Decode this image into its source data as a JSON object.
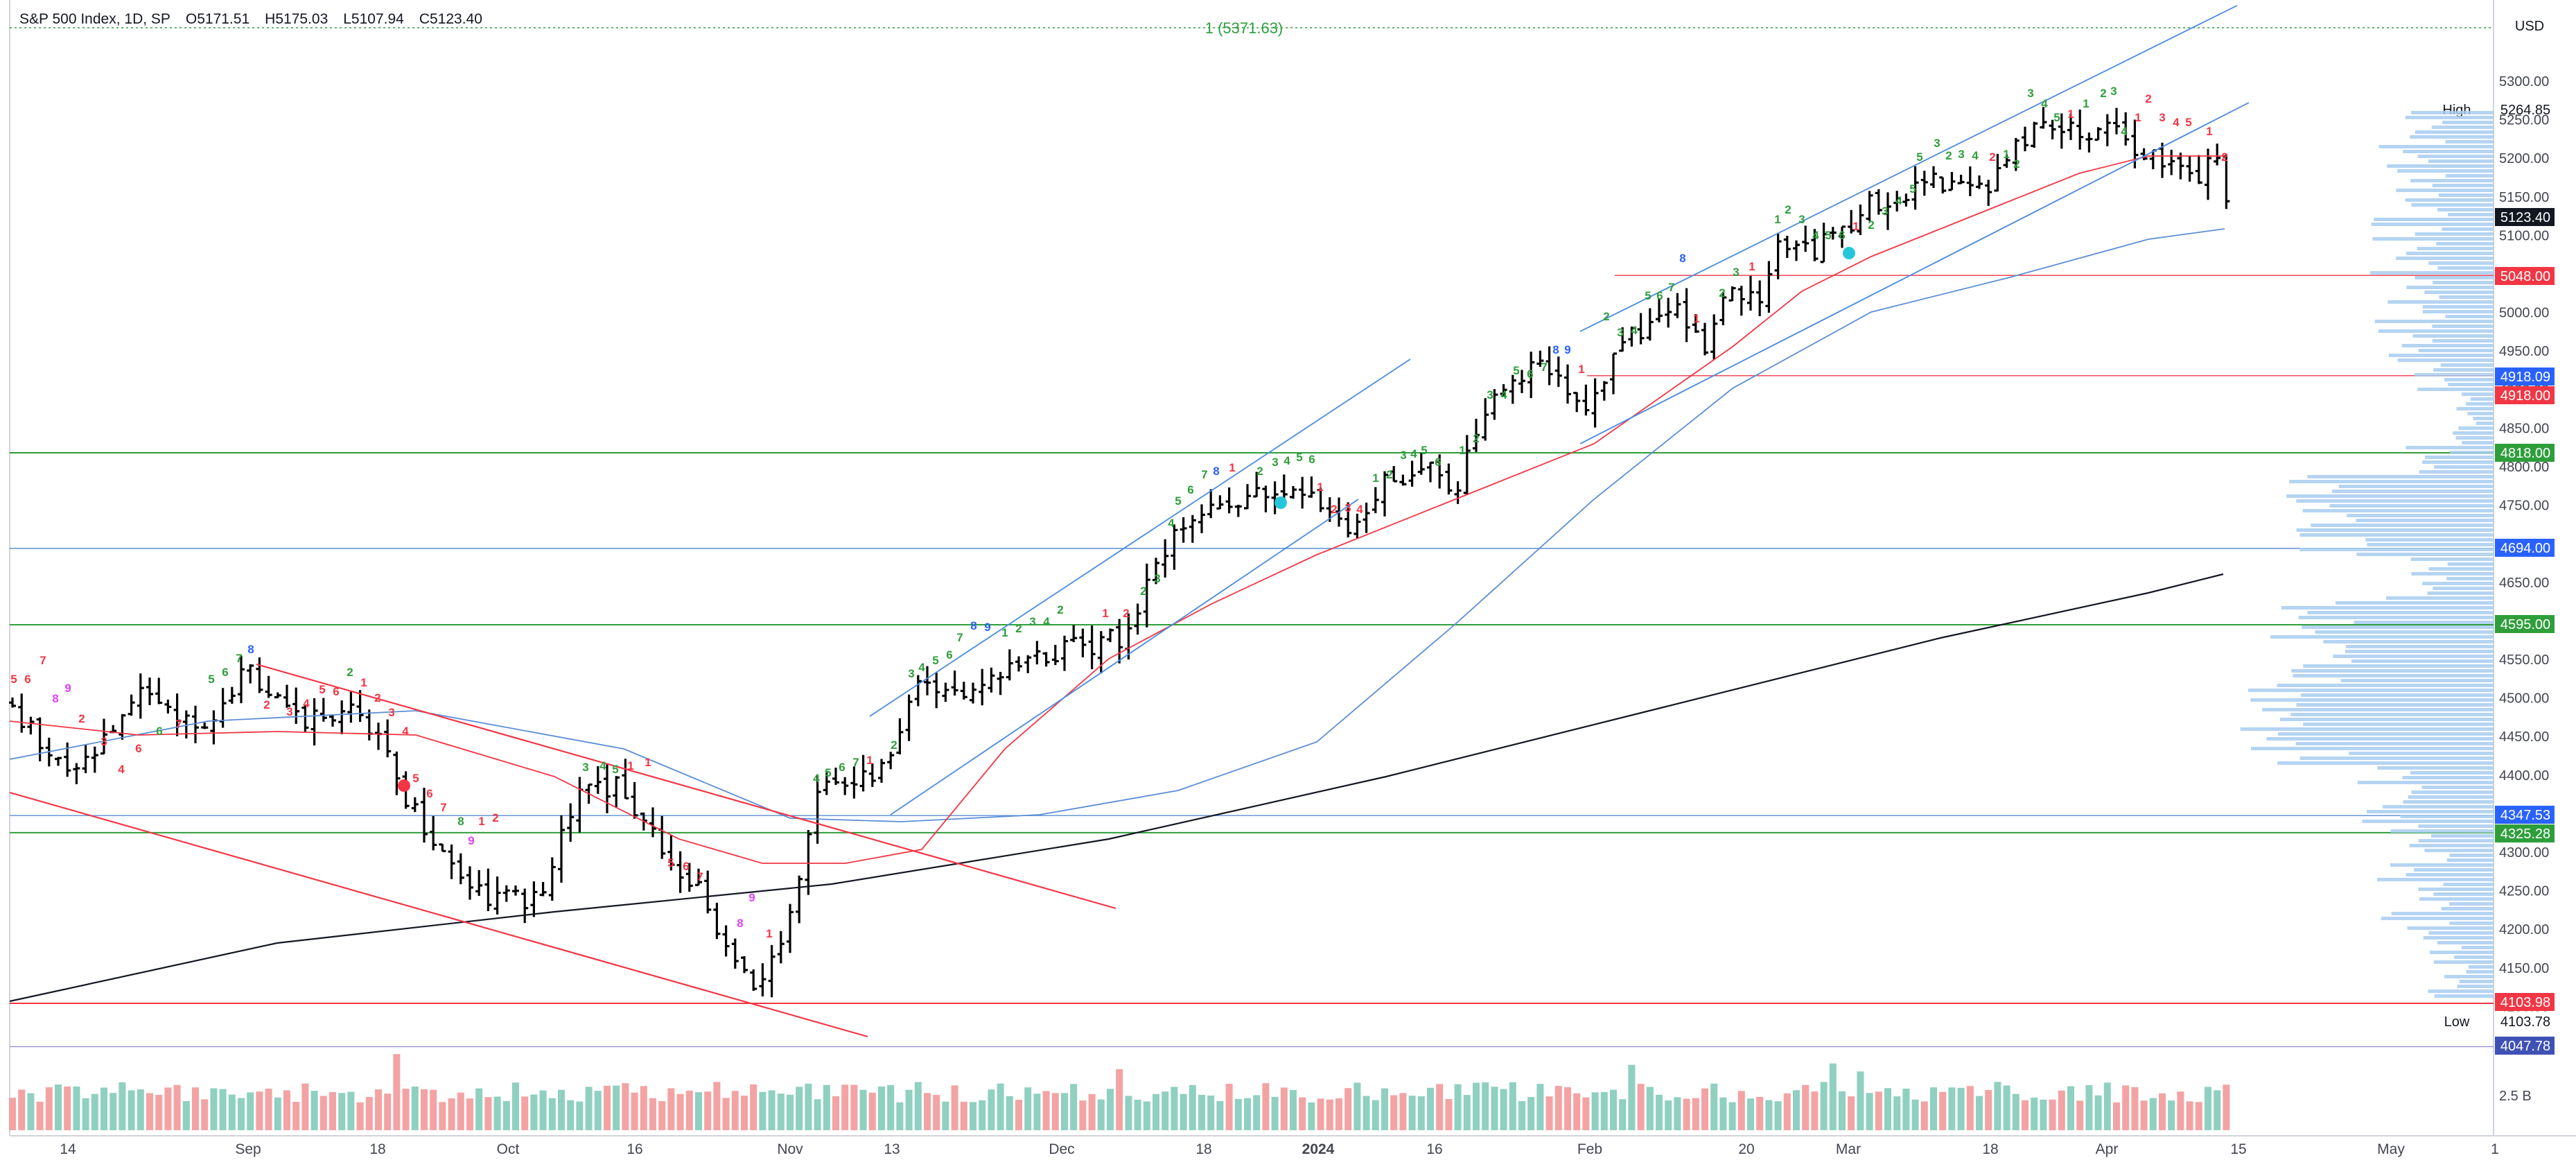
{
  "header": {
    "symbol": "S&P 500 Index, 1D, SP",
    "open": "O5171.51",
    "high": "H5175.03",
    "low": "L5107.94",
    "close": "C5123.40"
  },
  "currency": "USD",
  "top_note": "1 (5371.63)",
  "colors": {
    "up_bar": "#000000",
    "support_green": "#2e9e3b",
    "resistance_red": "#f23645",
    "ma_red": "#f23645",
    "ma_blue": "#5b8ed6",
    "ma_black": "#131722",
    "channel_blue": "#4a8be0",
    "volume_up": "#8fd0c0",
    "volume_down": "#f3a3a3",
    "volume_profile": "#a8cdf0"
  },
  "chart_data": {
    "type": "ohlc",
    "x_ticks": [
      "14",
      "Sep",
      "18",
      "Oct",
      "16",
      "Nov",
      "13",
      "Dec",
      "18",
      "2024",
      "16",
      "Feb",
      "20",
      "Mar",
      "18",
      "Apr",
      "15",
      "May",
      "1"
    ],
    "y_ticks": [
      "5300.00",
      "5250.00",
      "5200.00",
      "5150.00",
      "5100.00",
      "5050.00",
      "5000.00",
      "4950.00",
      "4900.00",
      "4850.00",
      "4800.00",
      "4750.00",
      "4700.00",
      "4650.00",
      "4600.00",
      "4550.00",
      "4500.00",
      "4450.00",
      "4400.00",
      "4350.00",
      "4300.00",
      "4250.00",
      "4200.00",
      "4150.00",
      "4100.00",
      "4050.00"
    ],
    "ylim": [
      4030,
      5380
    ],
    "price_labels": [
      {
        "text": "High",
        "value": "5264.85",
        "style": "plain"
      },
      {
        "text": "",
        "value": "5123.40",
        "style": "current"
      },
      {
        "text": "",
        "value": "5048.00",
        "style": "red"
      },
      {
        "text": "",
        "value": "4918.09",
        "style": "blue"
      },
      {
        "text": "",
        "value": "4918.00",
        "style": "red"
      },
      {
        "text": "",
        "value": "4818.00",
        "style": "green"
      },
      {
        "text": "",
        "value": "4694.00",
        "style": "blue"
      },
      {
        "text": "",
        "value": "4595.00",
        "style": "green"
      },
      {
        "text": "",
        "value": "4347.53",
        "style": "blue"
      },
      {
        "text": "",
        "value": "4325.28",
        "style": "green"
      },
      {
        "text": "",
        "value": "4103.98",
        "style": "red"
      },
      {
        "text": "Low",
        "value": "4103.78",
        "style": "plain"
      },
      {
        "text": "",
        "value": "4047.78",
        "style": "purple"
      }
    ],
    "horizontal_levels": [
      {
        "value": 5048,
        "color": "red"
      },
      {
        "value": 4918,
        "color": "red"
      },
      {
        "value": 4818,
        "color": "green"
      },
      {
        "value": 4694,
        "color": "blue"
      },
      {
        "value": 4595,
        "color": "green"
      },
      {
        "value": 4347.53,
        "color": "blue"
      },
      {
        "value": 4325.28,
        "color": "green"
      },
      {
        "value": 4103.98,
        "color": "red"
      },
      {
        "value": 4047.78,
        "color": "purple"
      }
    ],
    "volume_label": "2.5 B",
    "closes_anchor": [
      {
        "date": "Aug 14",
        "close": 4489
      },
      {
        "date": "Aug 18",
        "close": 4370
      },
      {
        "date": "Aug 31",
        "close": 4508
      },
      {
        "date": "Sep 18",
        "close": 4453
      },
      {
        "date": "Oct 3",
        "close": 4229
      },
      {
        "date": "Oct 12",
        "close": 4349
      },
      {
        "date": "Oct 27",
        "close": 4117
      },
      {
        "date": "Nov 14",
        "close": 4495
      },
      {
        "date": "Dec 1",
        "close": 4594
      },
      {
        "date": "Dec 14",
        "close": 4719
      },
      {
        "date": "Dec 28",
        "close": 4783
      },
      {
        "date": "Jan 5",
        "close": 4697
      },
      {
        "date": "Jan 19",
        "close": 4839
      },
      {
        "date": "Feb 1",
        "close": 4906
      },
      {
        "date": "Feb 12",
        "close": 5021
      },
      {
        "date": "Feb 22",
        "close": 5087
      },
      {
        "date": "Mar 7",
        "close": 5157
      },
      {
        "date": "Mar 28",
        "close": 5254
      },
      {
        "date": "Apr 12",
        "close": 5123
      }
    ]
  }
}
